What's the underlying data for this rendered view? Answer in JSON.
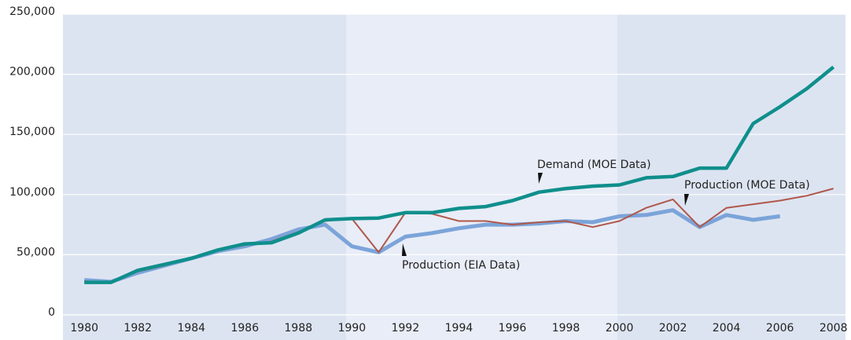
{
  "chart_data": {
    "type": "line",
    "x": [
      1980,
      1981,
      1982,
      1983,
      1984,
      1985,
      1986,
      1987,
      1988,
      1989,
      1990,
      1991,
      1992,
      1993,
      1994,
      1995,
      1996,
      1997,
      1998,
      1999,
      2000,
      2001,
      2002,
      2003,
      2004,
      2005,
      2006,
      2007,
      2008
    ],
    "series": [
      {
        "name": "Demand (MOE Data)",
        "color": "#0f8f8c",
        "values": [
          27000,
          27000,
          37000,
          42000,
          47000,
          54000,
          59000,
          60000,
          68000,
          79000,
          80000,
          80500,
          85000,
          85000,
          88500,
          90000,
          95000,
          102000,
          105000,
          107000,
          108000,
          114000,
          115000,
          122000,
          122000,
          159000,
          173000,
          188000,
          206000
        ]
      },
      {
        "name": "Production (MOE Data)",
        "color": "#b0574a",
        "values": [
          28000,
          27000,
          36000,
          41000,
          47000,
          54000,
          58000,
          61000,
          69000,
          78000,
          80000,
          52000,
          85000,
          84000,
          78000,
          78000,
          75000,
          77000,
          78000,
          73000,
          78000,
          89000,
          96000,
          73000,
          89000,
          92000,
          95000,
          99000,
          105000
        ]
      },
      {
        "name": "Production (EIA Data)",
        "color": "#7ba4d9",
        "values": [
          29000,
          27500,
          35000,
          41000,
          47000,
          53000,
          57000,
          63000,
          71000,
          75000,
          57000,
          52000,
          65000,
          68000,
          72000,
          75000,
          75000,
          76000,
          78000,
          77000,
          82000,
          83000,
          87000,
          73000,
          83000,
          79000,
          82000,
          null,
          null
        ]
      }
    ],
    "xlim": [
      1979.2,
      2008.45
    ],
    "xticks": [
      1980,
      1982,
      1984,
      1986,
      1988,
      1990,
      1992,
      1994,
      1996,
      1998,
      2000,
      2002,
      2004,
      2006,
      2008
    ],
    "ylim": [
      0,
      250000
    ],
    "yticks": [
      0,
      {
        "value": 50000,
        "label": "50,000"
      },
      {
        "value": 100000,
        "label": "100,000"
      },
      {
        "value": 150000,
        "label": "150,000"
      },
      {
        "value": 200000,
        "label": "200,000"
      },
      {
        "value": 250000,
        "label": "250,000"
      }
    ],
    "grid": true
  }
}
